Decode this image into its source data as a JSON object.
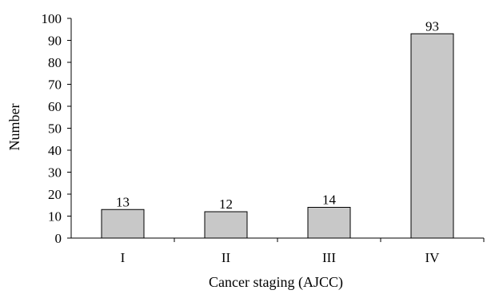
{
  "chart_data": {
    "type": "bar",
    "categories": [
      "I",
      "II",
      "III",
      "IV"
    ],
    "values": [
      13,
      12,
      14,
      93
    ],
    "data_labels": [
      "13",
      "12",
      "14",
      "93"
    ],
    "xlabel": "Cancer staging (AJCC)",
    "ylabel": "Number",
    "ylim": [
      0,
      100
    ],
    "yticks": [
      0,
      10,
      20,
      30,
      40,
      50,
      60,
      70,
      80,
      90,
      100
    ],
    "grid": false,
    "bar_color": "#c8c8c8",
    "bar_edge_color": "#000000"
  }
}
